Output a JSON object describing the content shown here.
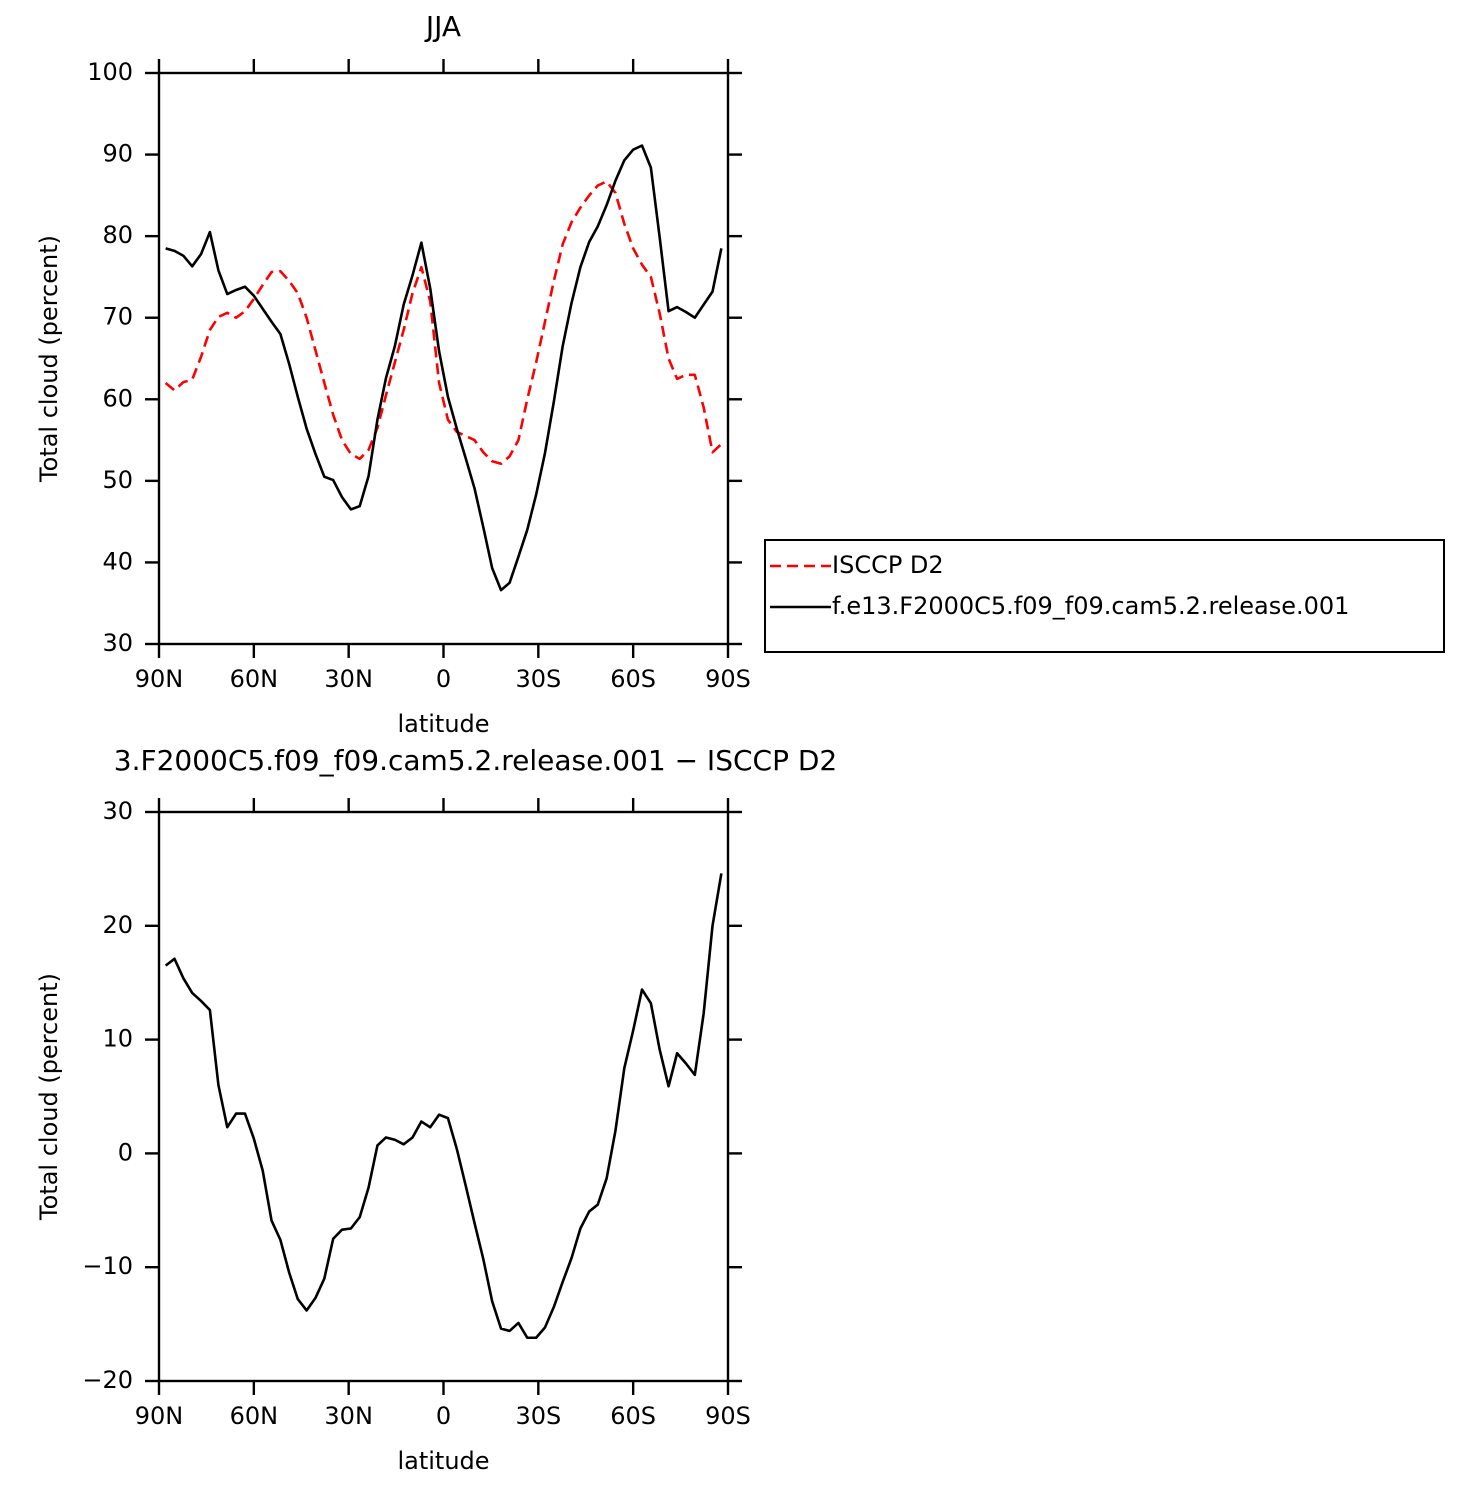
{
  "chart_data": [
    {
      "type": "line",
      "title": "JJA",
      "xlabel": "latitude",
      "ylabel": "Total cloud (percent)",
      "x": [
        87.9,
        85.1,
        82.3,
        79.5,
        76.7,
        73.9,
        71.2,
        68.4,
        65.6,
        62.8,
        60.0,
        57.2,
        54.4,
        51.6,
        48.8,
        46.1,
        43.3,
        40.5,
        37.7,
        34.9,
        32.1,
        29.3,
        26.5,
        23.7,
        20.9,
        18.2,
        15.4,
        12.6,
        9.8,
        7.0,
        4.2,
        1.4,
        -1.4,
        -4.2,
        -7.0,
        -9.8,
        -12.6,
        -15.4,
        -18.2,
        -20.9,
        -23.7,
        -26.5,
        -29.3,
        -32.1,
        -34.9,
        -37.7,
        -40.5,
        -43.3,
        -46.1,
        -48.8,
        -51.6,
        -54.4,
        -57.2,
        -60.0,
        -62.8,
        -65.6,
        -68.4,
        -71.2,
        -73.9,
        -76.7,
        -79.5,
        -82.3,
        -85.1,
        -87.9
      ],
      "series": [
        {
          "name": "ISCCP D2",
          "color": "#ff0000",
          "line_style": "dashed",
          "values": [
            62.0,
            61.1,
            62.1,
            62.4,
            65.2,
            68.5,
            70.1,
            70.6,
            70.0,
            70.8,
            72.3,
            74.0,
            75.6,
            75.7,
            74.5,
            73.0,
            70.0,
            66.0,
            62.0,
            58.1,
            55.0,
            53.3,
            52.7,
            53.8,
            56.5,
            60.5,
            64.5,
            68.5,
            73.0,
            76.2,
            72.0,
            62.0,
            57.5,
            56.0,
            55.5,
            55.0,
            53.5,
            52.4,
            52.1,
            53.0,
            55.0,
            60.0,
            64.5,
            69.5,
            74.5,
            79.0,
            81.7,
            83.5,
            85.0,
            86.2,
            86.7,
            85.3,
            81.5,
            78.5,
            76.5,
            75.0,
            70.5,
            65.0,
            62.5,
            63.0,
            63.0,
            59.0,
            53.5,
            54.5
          ]
        },
        {
          "name": "f.e13.F2000C5.f09_f09.cam5.2.release.001",
          "color": "#000000",
          "line_style": "solid",
          "values": [
            78.5,
            78.2,
            77.6,
            76.3,
            77.8,
            80.5,
            75.8,
            72.9,
            73.4,
            73.8,
            72.7,
            71.1,
            69.5,
            68.0,
            64.3,
            60.3,
            56.4,
            53.3,
            50.5,
            50.1,
            48.0,
            46.5,
            46.9,
            50.6,
            57.5,
            62.6,
            66.5,
            71.6,
            75.2,
            79.2,
            73.6,
            65.9,
            60.3,
            56.4,
            52.8,
            49.1,
            44.3,
            39.3,
            36.6,
            37.5,
            40.7,
            44.0,
            48.3,
            53.4,
            59.7,
            66.5,
            71.8,
            76.2,
            79.3,
            81.2,
            83.8,
            86.8,
            89.3,
            90.6,
            91.1,
            88.4,
            79.8,
            70.8,
            71.3,
            70.7,
            70.0,
            71.6,
            73.2,
            78.5
          ]
        }
      ],
      "xlim": [
        90,
        -90
      ],
      "xticks": [
        {
          "value": 90,
          "label": "90N"
        },
        {
          "value": 60,
          "label": "60N"
        },
        {
          "value": 30,
          "label": "30N"
        },
        0,
        {
          "value": -30,
          "label": "30S"
        },
        {
          "value": -60,
          "label": "60S"
        },
        {
          "value": -90,
          "label": "90S"
        }
      ],
      "ylim": [
        30,
        100
      ],
      "yticks": [
        30,
        40,
        50,
        60,
        70,
        80,
        90,
        100
      ],
      "legend": "outside-right"
    },
    {
      "type": "line",
      "title": "3.F2000C5.f09_f09.cam5.2.release.001 − ISCCP D2",
      "xlabel": "latitude",
      "ylabel": "Total cloud (percent)",
      "x": [
        87.9,
        85.1,
        82.3,
        79.5,
        76.7,
        73.9,
        71.2,
        68.4,
        65.6,
        62.8,
        60.0,
        57.2,
        54.4,
        51.6,
        48.8,
        46.1,
        43.3,
        40.5,
        37.7,
        34.9,
        32.1,
        29.3,
        26.5,
        23.7,
        20.9,
        18.2,
        15.4,
        12.6,
        9.8,
        7.0,
        4.2,
        1.4,
        -1.4,
        -4.2,
        -7.0,
        -9.8,
        -12.6,
        -15.4,
        -18.2,
        -20.9,
        -23.7,
        -26.5,
        -29.3,
        -32.1,
        -34.9,
        -37.7,
        -40.5,
        -43.3,
        -46.1,
        -48.8,
        -51.6,
        -54.4,
        -57.2,
        -60.0,
        -62.8,
        -65.6,
        -68.4,
        -71.2,
        -73.9,
        -76.7,
        -79.5,
        -82.3,
        -85.1,
        -87.9
      ],
      "series": [
        {
          "color": "#000000",
          "line_style": "solid",
          "values": [
            16.5,
            17.1,
            15.4,
            14.1,
            13.4,
            12.6,
            6.0,
            2.3,
            3.5,
            3.5,
            1.3,
            -1.5,
            -5.9,
            -7.6,
            -10.5,
            -12.8,
            -13.8,
            -12.7,
            -11.0,
            -7.5,
            -6.7,
            -6.6,
            -5.6,
            -3.0,
            0.7,
            1.4,
            1.2,
            0.8,
            1.4,
            2.8,
            2.3,
            3.4,
            3.1,
            0.4,
            -2.8,
            -6.1,
            -9.3,
            -13.0,
            -15.4,
            -15.6,
            -14.9,
            -16.2,
            -16.2,
            -15.3,
            -13.5,
            -11.3,
            -9.2,
            -6.6,
            -5.1,
            -4.5,
            -2.2,
            2.0,
            7.5,
            10.8,
            14.4,
            13.2,
            9.1,
            5.9,
            8.8,
            7.9,
            6.9,
            12.3,
            20.0,
            24.6
          ]
        }
      ],
      "xlim": [
        90,
        -90
      ],
      "xticks": [
        {
          "value": 90,
          "label": "90N"
        },
        {
          "value": 60,
          "label": "60N"
        },
        {
          "value": 30,
          "label": "30N"
        },
        0,
        {
          "value": -30,
          "label": "30S"
        },
        {
          "value": -60,
          "label": "60S"
        },
        {
          "value": -90,
          "label": "90S"
        }
      ],
      "ylim": [
        -20,
        30
      ],
      "yticks": [
        {
          "value": -20,
          "label": "−20"
        },
        {
          "value": -10,
          "label": "−10"
        },
        0,
        10,
        20,
        30
      ]
    }
  ]
}
